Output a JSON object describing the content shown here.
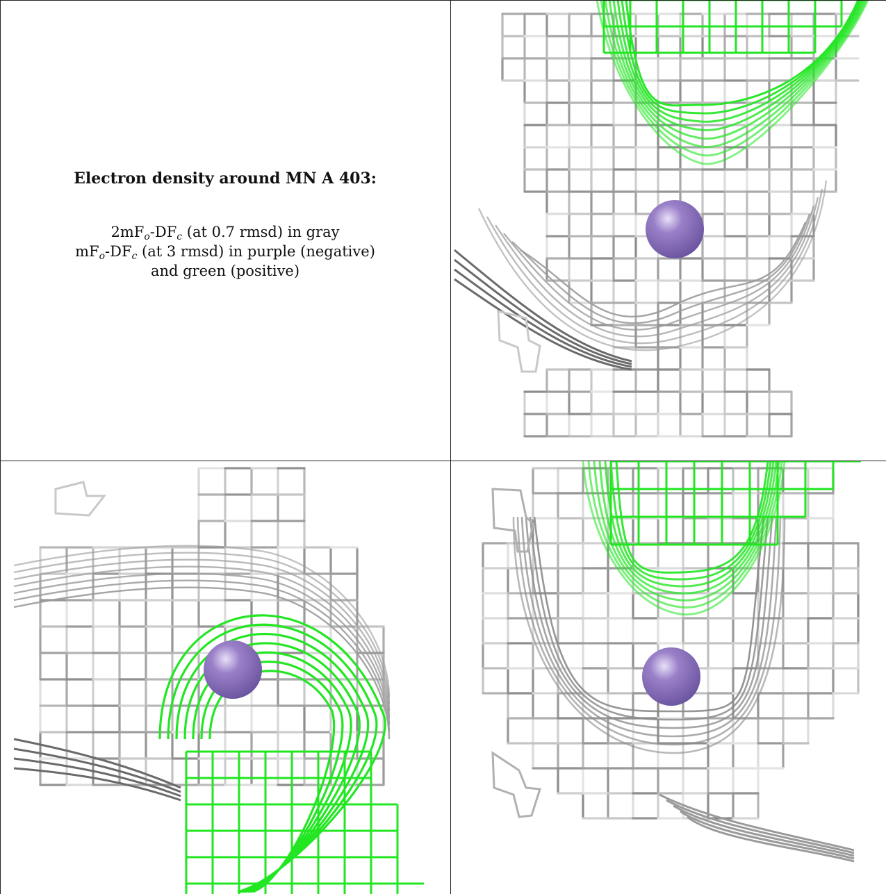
{
  "caption": {
    "title": "Electron density around MN A 403:",
    "line1": {
      "lead": "2mF",
      "sub1": "o",
      "mid": "-DF",
      "sub2": "c",
      "tail": " (at 0.7 rmsd) in gray"
    },
    "line2": {
      "lead": "mF",
      "sub1": "o",
      "mid": "-DF",
      "sub2": "c",
      "tail": " (at 3 rmsd) in purple (negative)"
    },
    "line3": "and green (positive)"
  },
  "colors": {
    "gray_mesh": "#a8a8a8",
    "gray_dark": "#555555",
    "green_mesh": "#22e622",
    "ion": "#9a80c8",
    "border": "#222222"
  },
  "panels": [
    {
      "name": "view-top-right",
      "icon": "manganese-ion"
    },
    {
      "name": "view-bottom-left",
      "icon": "manganese-ion"
    },
    {
      "name": "view-bottom-right",
      "icon": "manganese-ion"
    }
  ]
}
